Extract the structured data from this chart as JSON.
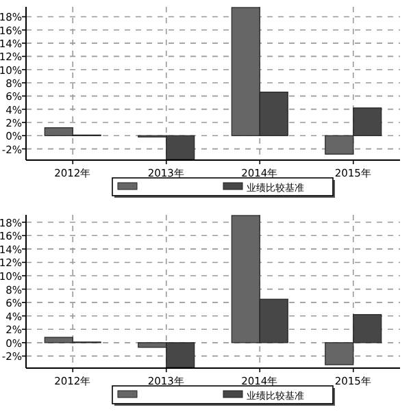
{
  "chart_data": [
    {
      "type": "bar",
      "categories": [
        "2012年",
        "2013年",
        "2014年",
        "2015年"
      ],
      "series": [
        {
          "color": "#666666",
          "values": [
            1.2,
            -0.2,
            19.4,
            -2.8
          ]
        },
        {
          "name": "业绩比较基准",
          "color": "#474747",
          "values": [
            0.1,
            -3.6,
            6.6,
            4.2
          ]
        }
      ],
      "ylim": [
        -3.7,
        19.5
      ],
      "yticks": [
        {
          "value": -2,
          "label": "-2%"
        },
        {
          "value": 0,
          "label": "0%"
        },
        {
          "value": 2,
          "label": "2%"
        },
        {
          "value": 4,
          "label": "4%"
        },
        {
          "value": 6,
          "label": "6%"
        },
        {
          "value": 8,
          "label": "8%"
        },
        {
          "value": 10,
          "label": "10%"
        },
        {
          "value": 12,
          "label": "12%"
        },
        {
          "value": 14,
          "label": "14%"
        },
        {
          "value": 16,
          "label": "16%"
        },
        {
          "value": 18,
          "label": "18%"
        }
      ],
      "grid": true,
      "legend": "bottom"
    },
    {
      "type": "bar",
      "categories": [
        "2012年",
        "2013年",
        "2014年",
        "2015年"
      ],
      "series": [
        {
          "color": "#666666",
          "values": [
            0.8,
            -0.7,
            19,
            -3.3
          ]
        },
        {
          "name": "业绩比较基准",
          "color": "#474747",
          "values": [
            0.1,
            -3.7,
            6.5,
            4.2
          ]
        }
      ],
      "ylim": [
        -3.8,
        19.1
      ],
      "yticks": [
        {
          "value": -2,
          "label": "-2%"
        },
        {
          "value": 0,
          "label": "0%"
        },
        {
          "value": 2,
          "label": "2%"
        },
        {
          "value": 4,
          "label": "4%"
        },
        {
          "value": 6,
          "label": "6%"
        },
        {
          "value": 8,
          "label": "8%"
        },
        {
          "value": 10,
          "label": "10%"
        },
        {
          "value": 12,
          "label": "12%"
        },
        {
          "value": 14,
          "label": "14%"
        },
        {
          "value": 16,
          "label": "16%"
        },
        {
          "value": 18,
          "label": "18%"
        }
      ],
      "grid": true,
      "legend": "bottom"
    }
  ]
}
